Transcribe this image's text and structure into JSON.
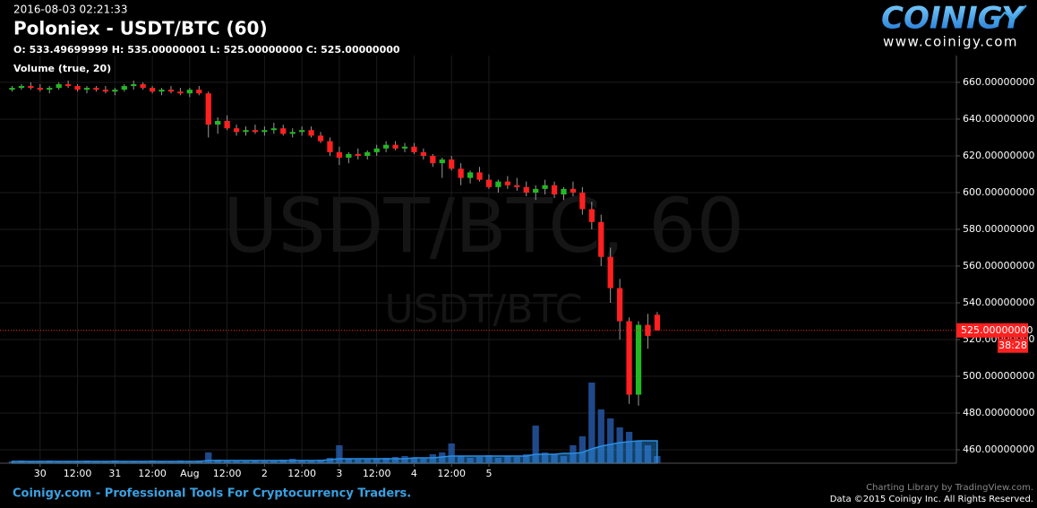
{
  "chart_data": {
    "type": "candlestick",
    "timestamp": "2016-08-03 02:21:33",
    "title": "Poloniex - USDT/BTC (60)",
    "legend_ohlc": "O: 533.49699999 H: 535.00000001 L: 525.00000000 C: 525.00000000",
    "volume_label": "Volume (true, 20)",
    "watermark": "USDT/BTC, 60",
    "watermark_small": "USDT/BTC",
    "logo": "COINIGY",
    "logo_url": "www.coinigy.com",
    "footer_left": "Coinigy.com - Professional Tools For Cryptocurrency Traders.",
    "footer_right_1": "Charting Library by TradingView.com.",
    "footer_right_2": "Data ©2015 Coinigy Inc. All Rights Reserved.",
    "countdown": "38:28",
    "up_color": "#22b922",
    "down_color": "#ff2020",
    "volume_color": "#2a62b8",
    "volume_ma_color": "#2a8de0",
    "grid": true,
    "x": [
      -9,
      -6,
      -3,
      0,
      3,
      6,
      9,
      12,
      15,
      18,
      21,
      24,
      27,
      30,
      33,
      36,
      39,
      42,
      45,
      48,
      51,
      54,
      57,
      60,
      63,
      66,
      69,
      72,
      75,
      78,
      81,
      84,
      87,
      90,
      93,
      96,
      99,
      102,
      105,
      108,
      111,
      114,
      117,
      120,
      123,
      126,
      129,
      132,
      135,
      138,
      141,
      144,
      147,
      150,
      153,
      156,
      159,
      162,
      165,
      168,
      171,
      174,
      177,
      180,
      183,
      186,
      189,
      192,
      195,
      198
    ],
    "open": [
      656,
      657,
      658,
      657,
      656,
      657,
      659,
      658,
      656,
      657,
      656,
      655,
      656,
      658,
      659,
      657,
      655,
      656,
      655,
      654,
      656,
      654,
      637,
      639,
      635,
      633,
      634,
      633,
      634,
      635,
      632,
      633,
      634,
      631,
      628,
      622,
      619,
      621,
      620,
      622,
      624,
      626,
      624,
      625,
      622,
      620,
      616,
      618,
      613,
      608,
      611,
      607,
      603,
      606,
      604,
      603,
      600,
      602,
      604,
      599,
      602,
      600,
      591,
      584,
      565,
      548,
      530,
      490,
      528,
      533.49699999
    ],
    "high": [
      658,
      659,
      660,
      659,
      658,
      660,
      661,
      659,
      658,
      658,
      658,
      657,
      659,
      661,
      660,
      658,
      657,
      658,
      657,
      657,
      658,
      655,
      641,
      642,
      637,
      636,
      637,
      636,
      638,
      637,
      635,
      636,
      636,
      633,
      630,
      625,
      622,
      624,
      623,
      626,
      628,
      628,
      627,
      627,
      624,
      621,
      619,
      620,
      616,
      612,
      614,
      610,
      607,
      609,
      608,
      606,
      604,
      607,
      606,
      603,
      606,
      603,
      595,
      588,
      570,
      553,
      532,
      530,
      534,
      535.00000001
    ],
    "low": [
      655,
      656,
      656,
      655,
      654,
      656,
      657,
      655,
      654,
      655,
      654,
      653,
      655,
      656,
      656,
      654,
      653,
      654,
      653,
      652,
      653,
      630,
      632,
      634,
      631,
      631,
      632,
      631,
      632,
      631,
      630,
      631,
      630,
      627,
      620,
      615,
      616,
      618,
      618,
      620,
      622,
      623,
      622,
      621,
      618,
      614,
      608,
      612,
      604,
      605,
      606,
      602,
      600,
      602,
      601,
      598,
      596,
      599,
      597,
      596,
      598,
      588,
      580,
      560,
      540,
      520,
      485,
      484,
      515,
      525
    ],
    "close": [
      657,
      658,
      657,
      656,
      657,
      659,
      658,
      656,
      657,
      656,
      655,
      656,
      658,
      659,
      657,
      655,
      656,
      655,
      654,
      656,
      654,
      637,
      639,
      635,
      633,
      634,
      633,
      634,
      635,
      632,
      633,
      634,
      631,
      628,
      622,
      619,
      621,
      620,
      622,
      624,
      626,
      624,
      625,
      622,
      620,
      616,
      618,
      613,
      608,
      611,
      607,
      603,
      606,
      604,
      603,
      600,
      602,
      604,
      599,
      602,
      600,
      591,
      584,
      565,
      548,
      530,
      490,
      528,
      522,
      525
    ],
    "volume": [
      2,
      3,
      2,
      2,
      3,
      2,
      2,
      2,
      3,
      2,
      2,
      3,
      2,
      2,
      2,
      3,
      2,
      2,
      3,
      2,
      3,
      12,
      4,
      3,
      3,
      2,
      3,
      2,
      3,
      4,
      5,
      3,
      3,
      4,
      6,
      20,
      5,
      4,
      4,
      5,
      6,
      7,
      8,
      6,
      5,
      10,
      12,
      22,
      8,
      6,
      7,
      9,
      6,
      8,
      7,
      10,
      42,
      12,
      10,
      8,
      20,
      30,
      90,
      60,
      50,
      40,
      35,
      25,
      20,
      8
    ],
    "volume_ma": [
      2,
      2,
      2,
      2,
      2,
      2,
      2,
      2,
      2,
      2,
      2,
      2,
      2,
      2,
      2,
      2,
      2,
      2,
      2,
      2,
      2,
      3,
      3,
      3,
      3,
      3,
      3,
      3,
      3,
      3,
      3,
      3,
      3,
      3,
      4,
      5,
      5,
      5,
      5,
      5,
      5,
      5,
      5,
      6,
      6,
      6,
      7,
      8,
      8,
      8,
      8,
      8,
      8,
      8,
      8,
      8,
      10,
      10,
      10,
      11,
      11,
      12,
      16,
      19,
      21,
      23,
      24,
      25,
      25,
      25
    ],
    "volume_lim": [
      0,
      100
    ],
    "xlim": [
      -10,
      294
    ],
    "xticks": [
      {
        "value": 0,
        "label": "30"
      },
      {
        "value": 12,
        "label": "12:00"
      },
      {
        "value": 24,
        "label": "31"
      },
      {
        "value": 36,
        "label": "12:00"
      },
      {
        "value": 48,
        "label": "Aug"
      },
      {
        "value": 60,
        "label": "12:00"
      },
      {
        "value": 72,
        "label": "2"
      },
      {
        "value": 84,
        "label": "12:00"
      },
      {
        "value": 96,
        "label": "3"
      },
      {
        "value": 108,
        "label": "12:00"
      },
      {
        "value": 120,
        "label": "4"
      },
      {
        "value": 132,
        "label": "12:00"
      },
      {
        "value": 144,
        "label": "5"
      }
    ],
    "ylim": [
      452.7,
      674.6
    ],
    "yticks": [
      {
        "value": 460,
        "label": "460.00000000"
      },
      {
        "value": 480,
        "label": "480.00000000"
      },
      {
        "value": 500,
        "label": "500.00000000"
      },
      {
        "value": 520,
        "label": "520.00000000"
      },
      {
        "value": 540,
        "label": "540.00000000"
      },
      {
        "value": 560,
        "label": "560.00000000"
      },
      {
        "value": 580,
        "label": "580.00000000"
      },
      {
        "value": 600,
        "label": "600.00000000"
      },
      {
        "value": 620,
        "label": "620.00000000"
      },
      {
        "value": 640,
        "label": "640.00000000"
      },
      {
        "value": 660,
        "label": "660.00000000"
      }
    ],
    "price_line": {
      "value": 525,
      "label": "525.00000000"
    }
  }
}
